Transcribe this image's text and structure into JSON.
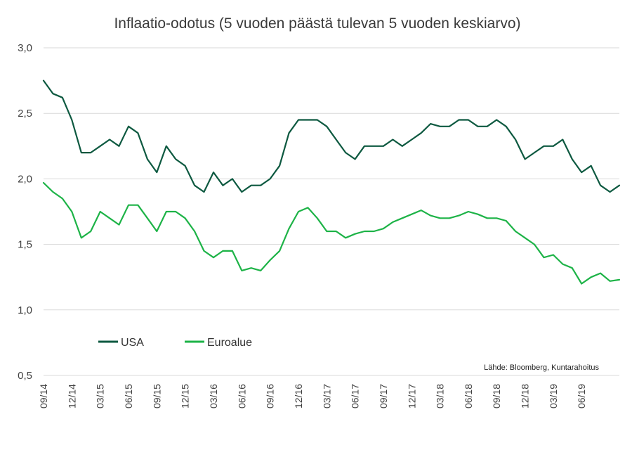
{
  "chart_data": {
    "type": "line",
    "title": "Inflaatio-odotus (5 vuoden päästä tulevan 5 vuoden keskiarvo)",
    "source": "Lähde: Bloomberg, Kuntarahoitus",
    "ylim": [
      0.5,
      3.0
    ],
    "yticks": [
      "0,5",
      "1,0",
      "1,5",
      "2,0",
      "2,5",
      "3,0"
    ],
    "ytick_values": [
      0.5,
      1.0,
      1.5,
      2.0,
      2.5,
      3.0
    ],
    "xticks": [
      "09/14",
      "12/14",
      "03/15",
      "06/15",
      "09/15",
      "12/15",
      "03/16",
      "06/16",
      "09/16",
      "12/16",
      "03/17",
      "06/17",
      "09/17",
      "12/17",
      "03/18",
      "06/18",
      "09/18",
      "12/18",
      "03/19",
      "06/19"
    ],
    "grid": true,
    "legend_position": "bottom-left",
    "x": [
      "2014-09",
      "2014-10",
      "2014-11",
      "2014-12",
      "2015-01",
      "2015-02",
      "2015-03",
      "2015-04",
      "2015-05",
      "2015-06",
      "2015-07",
      "2015-08",
      "2015-09",
      "2015-10",
      "2015-11",
      "2015-12",
      "2016-01",
      "2016-02",
      "2016-03",
      "2016-04",
      "2016-05",
      "2016-06",
      "2016-07",
      "2016-08",
      "2016-09",
      "2016-10",
      "2016-11",
      "2016-12",
      "2017-01",
      "2017-02",
      "2017-03",
      "2017-04",
      "2017-05",
      "2017-06",
      "2017-07",
      "2017-08",
      "2017-09",
      "2017-10",
      "2017-11",
      "2017-12",
      "2018-01",
      "2018-02",
      "2018-03",
      "2018-04",
      "2018-05",
      "2018-06",
      "2018-07",
      "2018-08",
      "2018-09",
      "2018-10",
      "2018-11",
      "2018-12",
      "2019-01",
      "2019-02",
      "2019-03",
      "2019-04",
      "2019-05",
      "2019-06",
      "2019-07",
      "2019-08",
      "2019-09",
      "2019-10"
    ],
    "series": [
      {
        "name": "USA",
        "color": "#0d5940",
        "values": [
          2.75,
          2.65,
          2.62,
          2.45,
          2.2,
          2.2,
          2.25,
          2.3,
          2.25,
          2.4,
          2.35,
          2.15,
          2.05,
          2.25,
          2.15,
          2.1,
          1.95,
          1.9,
          2.05,
          1.95,
          2.0,
          1.9,
          1.95,
          1.95,
          2.0,
          2.1,
          2.35,
          2.45,
          2.45,
          2.45,
          2.4,
          2.3,
          2.2,
          2.15,
          2.25,
          2.25,
          2.25,
          2.3,
          2.25,
          2.3,
          2.35,
          2.42,
          2.4,
          2.4,
          2.45,
          2.45,
          2.4,
          2.4,
          2.45,
          2.4,
          2.3,
          2.15,
          2.2,
          2.25,
          2.25,
          2.3,
          2.15,
          2.05,
          2.1,
          1.95,
          1.9,
          1.95
        ]
      },
      {
        "name": "Euroalue",
        "color": "#1db347",
        "values": [
          1.97,
          1.9,
          1.85,
          1.75,
          1.55,
          1.6,
          1.75,
          1.7,
          1.65,
          1.8,
          1.8,
          1.7,
          1.6,
          1.75,
          1.75,
          1.7,
          1.6,
          1.45,
          1.4,
          1.45,
          1.45,
          1.3,
          1.32,
          1.3,
          1.38,
          1.45,
          1.62,
          1.75,
          1.78,
          1.7,
          1.6,
          1.6,
          1.55,
          1.58,
          1.6,
          1.6,
          1.62,
          1.67,
          1.7,
          1.73,
          1.76,
          1.72,
          1.7,
          1.7,
          1.72,
          1.75,
          1.73,
          1.7,
          1.7,
          1.68,
          1.6,
          1.55,
          1.5,
          1.4,
          1.42,
          1.35,
          1.32,
          1.2,
          1.25,
          1.28,
          1.22,
          1.23
        ]
      }
    ]
  }
}
